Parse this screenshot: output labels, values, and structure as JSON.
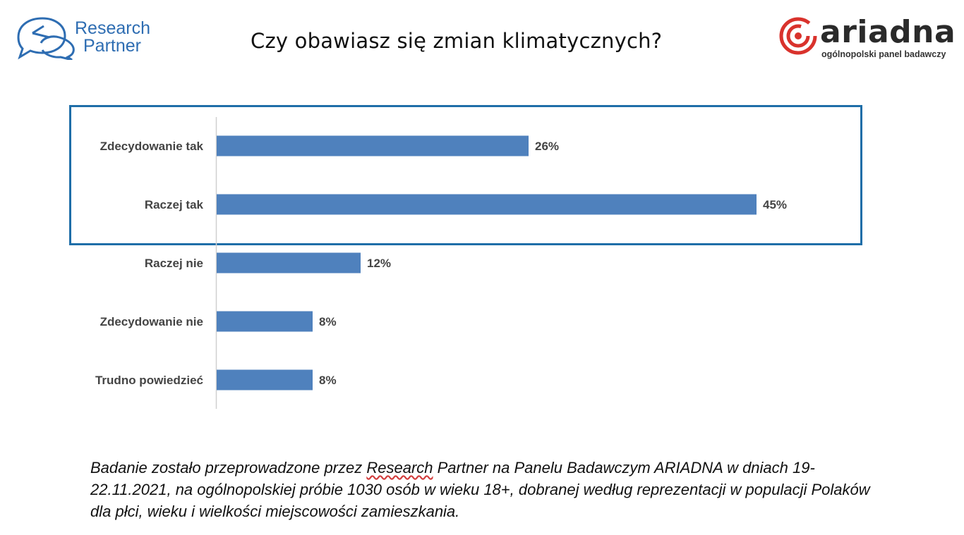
{
  "brand_left": {
    "line1": "Research",
    "line2": "Partner",
    "icon": "speech-bubbles-pie-icon",
    "color": "#2e6db2"
  },
  "brand_right": {
    "name": "ariadna",
    "tagline": "ogólnopolski panel badawczy",
    "icon": "red-spiral-logo-icon",
    "color": "#d9322c"
  },
  "title": "Czy obawiasz się zmian klimatycznych?",
  "chart_data": {
    "type": "bar",
    "orientation": "horizontal",
    "categories": [
      "Zdecydowanie tak",
      "Raczej tak",
      "Raczej nie",
      "Zdecydowanie nie",
      "Trudno powiedzieć"
    ],
    "values": [
      26,
      45,
      12,
      8,
      8
    ],
    "value_labels": [
      "26%",
      "45%",
      "12%",
      "8%",
      "8%"
    ],
    "unit": "%",
    "xlim": [
      0,
      45
    ],
    "bar_color": "#4f81bd",
    "highlight": {
      "categories": [
        "Zdecydowanie tak",
        "Raczej tak"
      ],
      "color": "#1f6ea8"
    },
    "grid": false,
    "legend": "none"
  },
  "footnote": {
    "pre": "Badanie zostało przeprowadzone przez ",
    "research": "Research",
    "post": " Partner na Panelu Badawczym ARIADNA w dniach 19-22.11.2021, na ogólnopolskiej próbie 1030 osób w wieku 18+, dobranej według reprezentacji w populacji Polaków dla płci, wieku i wielkości miejscowości zamieszkania."
  }
}
